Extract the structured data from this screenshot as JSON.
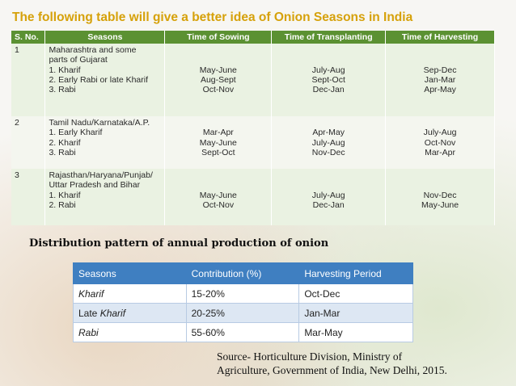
{
  "title": "The following table will give a better idea of Onion Seasons in India",
  "seasons_table": {
    "headers": [
      "S. No.",
      "Seasons",
      "Time of Sowing",
      "Time of Transplanting",
      "Time of Harvesting"
    ],
    "rows": [
      {
        "sno": "1",
        "region": [
          "Maharashtra and some",
          "parts of Gujarat"
        ],
        "seasons": [
          "1. Kharif",
          "2. Early Rabi or late Kharif",
          "3. Rabi"
        ],
        "sowing": [
          "May-June",
          "Aug-Sept",
          "Oct-Nov"
        ],
        "transplanting": [
          "July-Aug",
          "Sept-Oct",
          "Dec-Jan"
        ],
        "harvesting": [
          "Sep-Dec",
          "Jan-Mar",
          "Apr-May"
        ]
      },
      {
        "sno": "2",
        "region": [
          "Tamil Nadu/Karnataka/A.P."
        ],
        "seasons": [
          "1. Early Kharif",
          "2. Kharif",
          "3. Rabi"
        ],
        "sowing": [
          "Mar-Apr",
          "May-June",
          "Sept-Oct"
        ],
        "transplanting": [
          "Apr-May",
          "July-Aug",
          "Nov-Dec"
        ],
        "harvesting": [
          "July-Aug",
          "Oct-Nov",
          "Mar-Apr"
        ]
      },
      {
        "sno": "3",
        "region": [
          "Rajasthan/Haryana/Punjab/",
          "Uttar Pradesh and Bihar"
        ],
        "seasons": [
          "1. Kharif",
          "2. Rabi"
        ],
        "sowing": [
          "May-June",
          "Oct-Nov"
        ],
        "transplanting": [
          "July-Aug",
          "Dec-Jan"
        ],
        "harvesting": [
          "Nov-Dec",
          "May-June"
        ]
      }
    ]
  },
  "distribution": {
    "heading": "Distribution pattern of annual production of onion",
    "headers": [
      "Seasons",
      "Contribution (%)",
      "Harvesting Period"
    ],
    "rows": [
      {
        "season_prefix": "",
        "season_italic": "Kharif",
        "contribution": "15-20%",
        "period": "Oct-Dec"
      },
      {
        "season_prefix": "Late ",
        "season_italic": "Kharif",
        "contribution": "20-25%",
        "period": "Jan-Mar"
      },
      {
        "season_prefix": "",
        "season_italic": "Rabi",
        "contribution": "55-60%",
        "period": "Mar-May"
      }
    ]
  },
  "source": {
    "line1": "Source- Horticulture Division, Ministry of",
    "line2": "Agriculture, Government of India, New Delhi, 2015."
  }
}
